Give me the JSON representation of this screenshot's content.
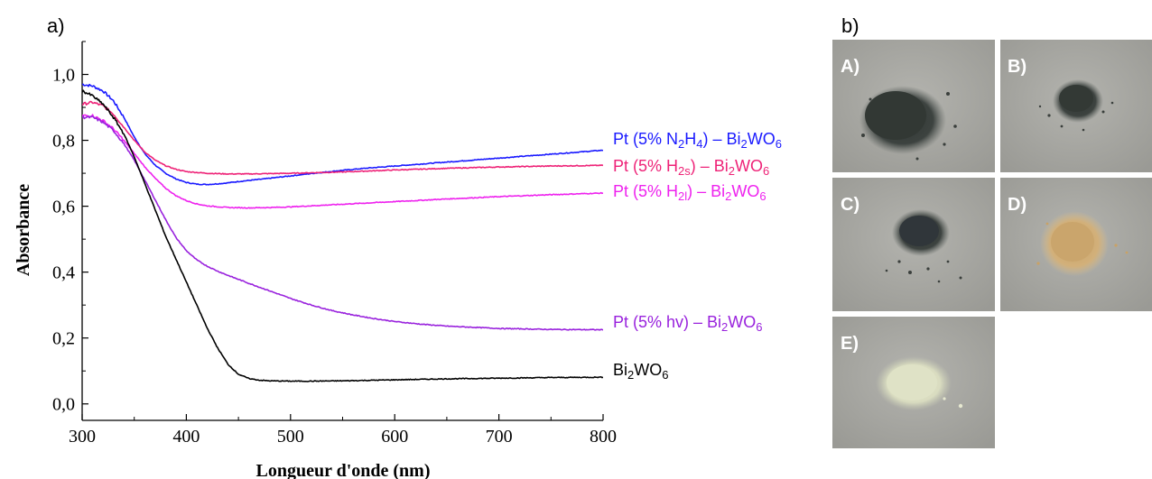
{
  "panels": {
    "a_label": "a)",
    "b_label": "b)"
  },
  "chart_data": {
    "type": "line",
    "xlabel": "Longueur d'onde (nm)",
    "ylabel": "Absorbance",
    "xlim": [
      300,
      800
    ],
    "ylim": [
      -0.05,
      1.1
    ],
    "xticks": [
      300,
      400,
      500,
      600,
      700,
      800
    ],
    "xtick_labels": [
      "300",
      "400",
      "500",
      "600",
      "700",
      "800"
    ],
    "yticks": [
      0.0,
      0.2,
      0.4,
      0.6,
      0.8,
      1.0
    ],
    "ytick_labels": [
      "0,0",
      "0,2",
      "0,4",
      "0,6",
      "0,8",
      "1,0"
    ],
    "grid": false,
    "series": [
      {
        "key": "n2h4",
        "color": "#1a1aff",
        "label_parts": [
          {
            "t": "Pt (5% N"
          },
          {
            "t": "2",
            "sub": true
          },
          {
            "t": "H"
          },
          {
            "t": "4",
            "sub": true
          },
          {
            "t": ") – Bi"
          },
          {
            "t": "2",
            "sub": true
          },
          {
            "t": "WO"
          },
          {
            "t": "6",
            "sub": true
          }
        ],
        "x": [
          300,
          310,
          320,
          330,
          340,
          350,
          360,
          370,
          380,
          390,
          400,
          410,
          420,
          430,
          440,
          450,
          475,
          500,
          525,
          550,
          575,
          600,
          625,
          650,
          675,
          700,
          725,
          750,
          775,
          800
        ],
        "y": [
          0.97,
          0.965,
          0.95,
          0.92,
          0.87,
          0.81,
          0.76,
          0.725,
          0.7,
          0.683,
          0.672,
          0.667,
          0.666,
          0.668,
          0.671,
          0.675,
          0.683,
          0.692,
          0.701,
          0.709,
          0.716,
          0.722,
          0.728,
          0.734,
          0.74,
          0.746,
          0.752,
          0.758,
          0.764,
          0.77
        ]
      },
      {
        "key": "h2s",
        "color": "#ee2277",
        "label_parts": [
          {
            "t": "Pt (5% H"
          },
          {
            "t": "2s",
            "sub": true
          },
          {
            "t": ") – Bi"
          },
          {
            "t": "2",
            "sub": true
          },
          {
            "t": "WO"
          },
          {
            "t": "6",
            "sub": true
          }
        ],
        "x": [
          300,
          310,
          320,
          330,
          340,
          350,
          360,
          370,
          380,
          390,
          400,
          420,
          440,
          460,
          480,
          500,
          550,
          600,
          650,
          700,
          750,
          800
        ],
        "y": [
          0.91,
          0.915,
          0.905,
          0.88,
          0.84,
          0.8,
          0.765,
          0.74,
          0.723,
          0.712,
          0.705,
          0.7,
          0.698,
          0.698,
          0.699,
          0.7,
          0.704,
          0.71,
          0.715,
          0.719,
          0.722,
          0.724
        ]
      },
      {
        "key": "h2l",
        "color": "#ee22ee",
        "label_parts": [
          {
            "t": "Pt (5% H"
          },
          {
            "t": "2l",
            "sub": true
          },
          {
            "t": ") – Bi"
          },
          {
            "t": "2",
            "sub": true
          },
          {
            "t": "WO"
          },
          {
            "t": "6",
            "sub": true
          }
        ],
        "x": [
          300,
          310,
          320,
          330,
          340,
          350,
          360,
          370,
          380,
          390,
          400,
          410,
          420,
          440,
          460,
          480,
          500,
          550,
          600,
          650,
          700,
          750,
          800
        ],
        "y": [
          0.875,
          0.875,
          0.86,
          0.835,
          0.8,
          0.76,
          0.72,
          0.685,
          0.655,
          0.632,
          0.617,
          0.607,
          0.601,
          0.596,
          0.595,
          0.596,
          0.598,
          0.606,
          0.614,
          0.622,
          0.629,
          0.635,
          0.64
        ]
      },
      {
        "key": "hv",
        "color": "#9922dd",
        "label_parts": [
          {
            "t": "Pt (5% hv) – Bi"
          },
          {
            "t": "2",
            "sub": true
          },
          {
            "t": "WO"
          },
          {
            "t": "6",
            "sub": true
          }
        ],
        "x": [
          300,
          310,
          320,
          330,
          340,
          350,
          360,
          370,
          380,
          390,
          400,
          410,
          420,
          430,
          440,
          450,
          460,
          480,
          500,
          520,
          540,
          560,
          580,
          600,
          625,
          650,
          700,
          750,
          800
        ],
        "y": [
          0.87,
          0.87,
          0.855,
          0.83,
          0.79,
          0.74,
          0.68,
          0.62,
          0.56,
          0.505,
          0.465,
          0.437,
          0.418,
          0.403,
          0.39,
          0.378,
          0.366,
          0.343,
          0.32,
          0.3,
          0.283,
          0.27,
          0.259,
          0.25,
          0.242,
          0.236,
          0.229,
          0.226,
          0.225
        ]
      },
      {
        "key": "bare",
        "color": "#000000",
        "label_parts": [
          {
            "t": "Bi"
          },
          {
            "t": "2",
            "sub": true
          },
          {
            "t": "WO"
          },
          {
            "t": "6",
            "sub": true
          }
        ],
        "x": [
          300,
          310,
          320,
          330,
          340,
          350,
          360,
          370,
          380,
          390,
          400,
          410,
          420,
          430,
          440,
          450,
          460,
          470,
          480,
          500,
          520,
          550,
          600,
          650,
          700,
          750,
          800
        ],
        "y": [
          0.95,
          0.935,
          0.91,
          0.87,
          0.82,
          0.75,
          0.67,
          0.59,
          0.51,
          0.44,
          0.37,
          0.3,
          0.23,
          0.17,
          0.12,
          0.09,
          0.077,
          0.072,
          0.07,
          0.069,
          0.069,
          0.07,
          0.073,
          0.076,
          0.078,
          0.08,
          0.081
        ]
      }
    ]
  },
  "photos": [
    {
      "label": "A)",
      "sample": "dark grey powder"
    },
    {
      "label": "B)",
      "sample": "dark grey powder"
    },
    {
      "label": "C)",
      "sample": "dark grey powder"
    },
    {
      "label": "D)",
      "sample": "tan powder"
    },
    {
      "label": "E)",
      "sample": "pale yellow powder"
    }
  ]
}
